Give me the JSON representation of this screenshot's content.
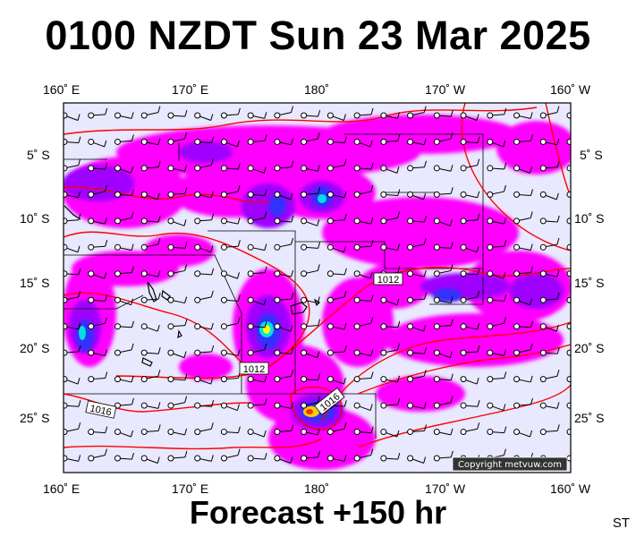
{
  "title": "0100 NZDT Sun 23 Mar 2025",
  "footer": "Forecast +150 hr",
  "corner_label": "ST",
  "copyright": "Copyright metvuw.com",
  "map": {
    "lon_labels": [
      "160˚ E",
      "170˚ E",
      "180˚",
      "170˚ W",
      "160˚ W"
    ],
    "lat_labels": [
      "5˚ S",
      "10˚ S",
      "15˚ S",
      "20˚ S",
      "25˚ S"
    ],
    "isobar_labels": [
      "1012",
      "1012",
      "1016",
      "1016"
    ],
    "colors": {
      "background": "#e8e8ff",
      "rain_light": "#ff00ff",
      "rain_mid": "#a000ff",
      "rain_heavy": "#3030ff",
      "rain_extreme": "#ffff00",
      "isobar": "#ff0000",
      "land": "#000000"
    }
  }
}
